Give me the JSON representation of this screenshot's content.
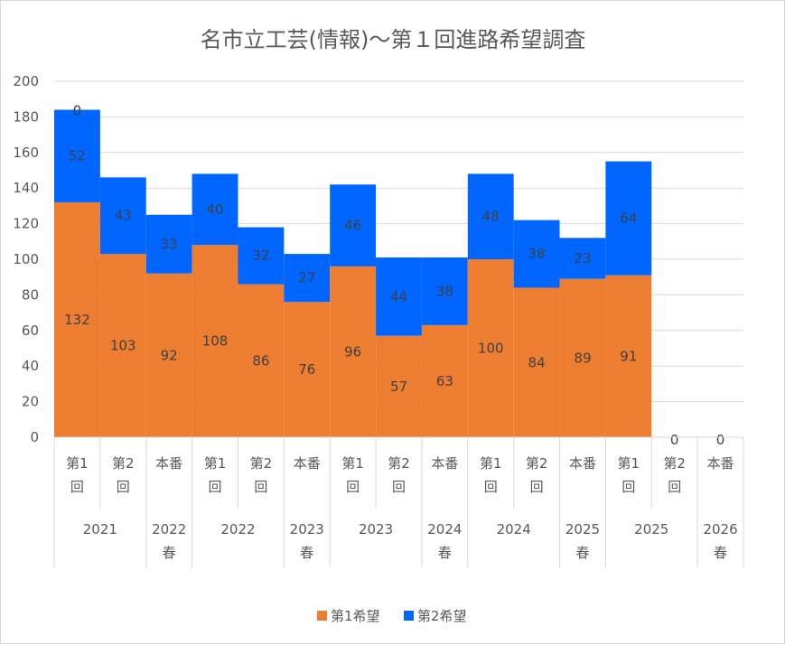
{
  "chart_data": {
    "type": "bar",
    "stacked": true,
    "title": "名市立工芸(情報)〜第１回進路希望調査",
    "ylim": [
      0,
      200
    ],
    "yticks": [
      0,
      20,
      40,
      60,
      80,
      100,
      120,
      140,
      160,
      180,
      200
    ],
    "grid": true,
    "legend_position": "bottom",
    "groups": [
      {
        "label": "2021",
        "categories": [
          [
            "第1",
            "回"
          ],
          [
            "第2",
            "回"
          ]
        ]
      },
      {
        "label": [
          "2022",
          "春"
        ],
        "categories": [
          [
            "本番"
          ]
        ]
      },
      {
        "label": "2022",
        "categories": [
          [
            "第1",
            "回"
          ],
          [
            "第2",
            "回"
          ]
        ]
      },
      {
        "label": [
          "2023",
          "春"
        ],
        "categories": [
          [
            "本番"
          ]
        ]
      },
      {
        "label": "2023",
        "categories": [
          [
            "第1",
            "回"
          ],
          [
            "第2",
            "回"
          ]
        ]
      },
      {
        "label": [
          "2024",
          "春"
        ],
        "categories": [
          [
            "本番"
          ]
        ]
      },
      {
        "label": "2024",
        "categories": [
          [
            "第1",
            "回"
          ],
          [
            "第2",
            "回"
          ]
        ]
      },
      {
        "label": [
          "2025",
          "春"
        ],
        "categories": [
          [
            "本番"
          ]
        ]
      },
      {
        "label": "2025",
        "categories": [
          [
            "第1",
            "回"
          ],
          [
            "第2",
            "回"
          ]
        ]
      },
      {
        "label": [
          "2026",
          "春"
        ],
        "categories": [
          [
            "本番"
          ]
        ]
      }
    ],
    "series": [
      {
        "name": "第1希望",
        "color": "#ED7D31",
        "values": [
          132,
          103,
          92,
          108,
          86,
          76,
          96,
          57,
          63,
          100,
          84,
          89,
          91,
          null,
          null
        ]
      },
      {
        "name": "第2希望",
        "color": "#0066FF",
        "values": [
          52,
          43,
          33,
          40,
          32,
          27,
          46,
          44,
          38,
          48,
          38,
          23,
          64,
          null,
          null
        ]
      }
    ],
    "extra_labels": [
      {
        "bar": 0,
        "text": "0",
        "placement": "top-of-stack"
      },
      {
        "bar": 13,
        "text": "0",
        "placement": "axis"
      },
      {
        "bar": 14,
        "text": "0",
        "placement": "axis"
      }
    ]
  }
}
